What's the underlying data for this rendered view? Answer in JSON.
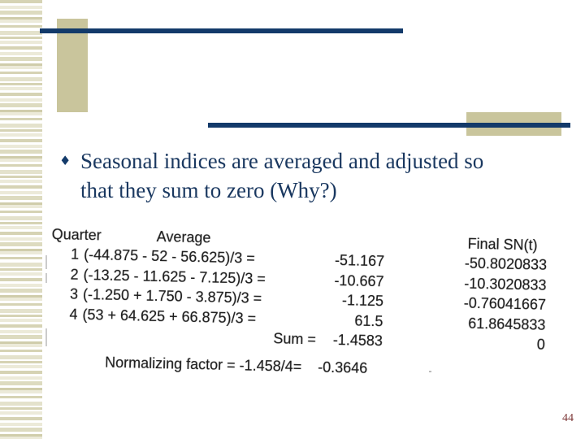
{
  "colors": {
    "navy": "#133a6a",
    "olive": "#c9c59c",
    "title": "#1a3860",
    "maroon": "#7b3535"
  },
  "slide": {
    "bullet": {
      "glyph": "♦",
      "line1": "Seasonal indices are averaged and adjusted so",
      "line2": "that they sum to zero (Why?)"
    },
    "table": {
      "headers": {
        "quarter": "Quarter",
        "average": "Average",
        "final": "Final SN(t)"
      },
      "rows": [
        {
          "quarter": "1",
          "expression": "(-44.875 - 52 - 56.625)/3 =",
          "average": "-51.167",
          "final": "-50.8020833"
        },
        {
          "quarter": "2",
          "expression": "(-13.25 - 11.625 - 7.125)/3 =",
          "average": "-10.667",
          "final": "-10.3020833"
        },
        {
          "quarter": "3",
          "expression": "(-1.250 + 1.750 - 3.875)/3 =",
          "average": "-1.125",
          "final": "-0.76041667"
        },
        {
          "quarter": "4",
          "expression": "(53 + 64.625 + 66.875)/3 =",
          "average": "61.5",
          "final": "61.8645833"
        }
      ],
      "sum_label": "Sum =",
      "sum_value": "-1.4583",
      "sum_final": "0",
      "normalizing_label": "Normalizing factor = -1.458/4=",
      "normalizing_value": "-0.3646"
    },
    "page_number": "44"
  }
}
